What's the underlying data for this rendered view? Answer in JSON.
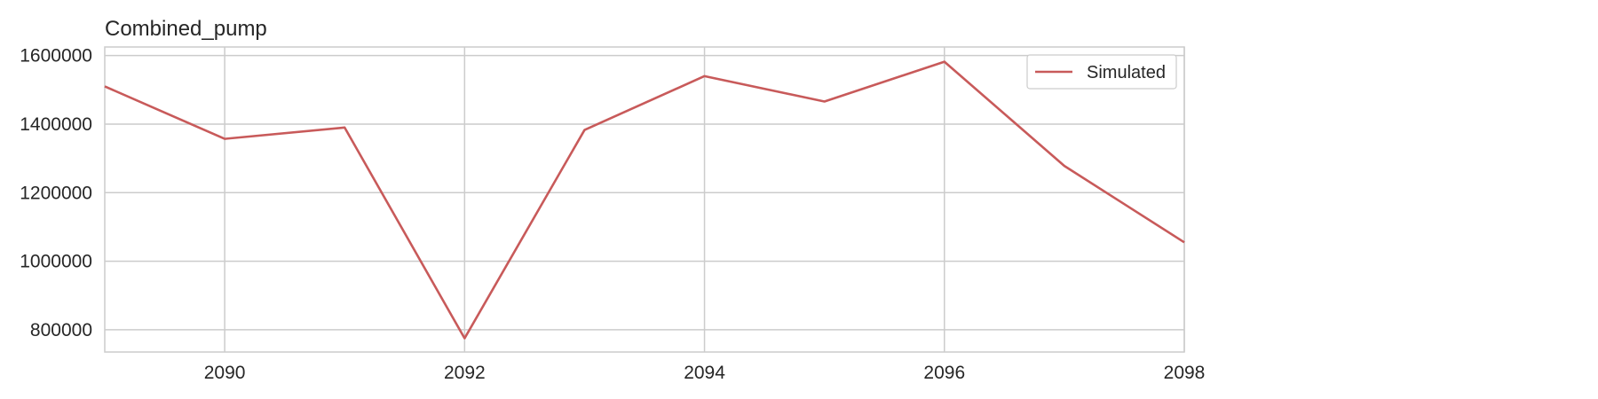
{
  "chart_data": {
    "type": "line",
    "title": "Combined_pump",
    "xlabel": "",
    "ylabel": "",
    "x": [
      2089,
      2090,
      2091,
      2092,
      2093,
      2094,
      2095,
      2096,
      2097,
      2098
    ],
    "series": [
      {
        "name": "Simulated",
        "color": "#c85a5a",
        "values": [
          1510000,
          1357000,
          1390000,
          775000,
          1383000,
          1540000,
          1466000,
          1582000,
          1278000,
          1055000
        ]
      }
    ],
    "xlim": [
      2089,
      2098
    ],
    "ylim": [
      735000,
      1625000
    ],
    "xticks": [
      2090,
      2092,
      2094,
      2096,
      2098
    ],
    "xtick_labels": [
      "2090",
      "2092",
      "2094",
      "2096",
      "2098"
    ],
    "yticks": [
      800000,
      1000000,
      1200000,
      1400000,
      1600000
    ],
    "ytick_labels": [
      "800000",
      "1000000",
      "1200000",
      "1400000",
      "1600000"
    ],
    "grid": true,
    "legend_position": "top-right"
  }
}
